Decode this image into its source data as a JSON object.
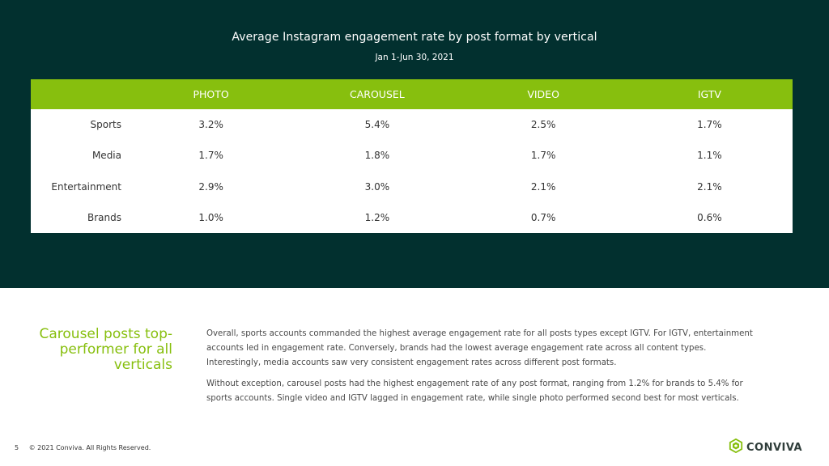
{
  "slide": {
    "title": "Average Instagram engagement rate by post format by vertical",
    "subtitle": "Jan 1-Jun 30, 2021"
  },
  "table": {
    "headers": [
      "PHOTO",
      "CAROUSEL",
      "VIDEO",
      "IGTV"
    ],
    "rows": [
      {
        "label": "Sports",
        "values": [
          "3.2%",
          "5.4%",
          "2.5%",
          "1.7%"
        ]
      },
      {
        "label": "Media",
        "values": [
          "1.7%",
          "1.8%",
          "1.7%",
          "1.1%"
        ]
      },
      {
        "label": "Entertainment",
        "values": [
          "2.9%",
          "3.0%",
          "2.1%",
          "2.1%"
        ]
      },
      {
        "label": "Brands",
        "values": [
          "1.0%",
          "1.2%",
          "0.7%",
          "0.6%"
        ]
      }
    ]
  },
  "callout": "Carousel posts top-performer for all verticals",
  "paragraphs": [
    "Overall, sports accounts commanded the highest average engagement rate for all posts types except IGTV. For IGTV, entertainment accounts led in engagement rate. Conversely, brands had the lowest average engagement rate across all content types. Interestingly, media accounts saw very consistent engagement rates across different post formats.",
    "Without exception, carousel posts had the highest engagement rate of any post format, ranging from 1.2% for brands to 5.4% for sports accounts. Single video and IGTV lagged in engagement rate, while single photo performed second best for most verticals."
  ],
  "footer": {
    "page_number": "5",
    "copyright": "© 2021 Conviva. All Rights Reserved."
  },
  "logo": {
    "text": "CONVIVA",
    "icon": "conviva-hexagon-icon"
  },
  "colors": {
    "panel": "#02302f",
    "accent": "#87bf0e"
  }
}
